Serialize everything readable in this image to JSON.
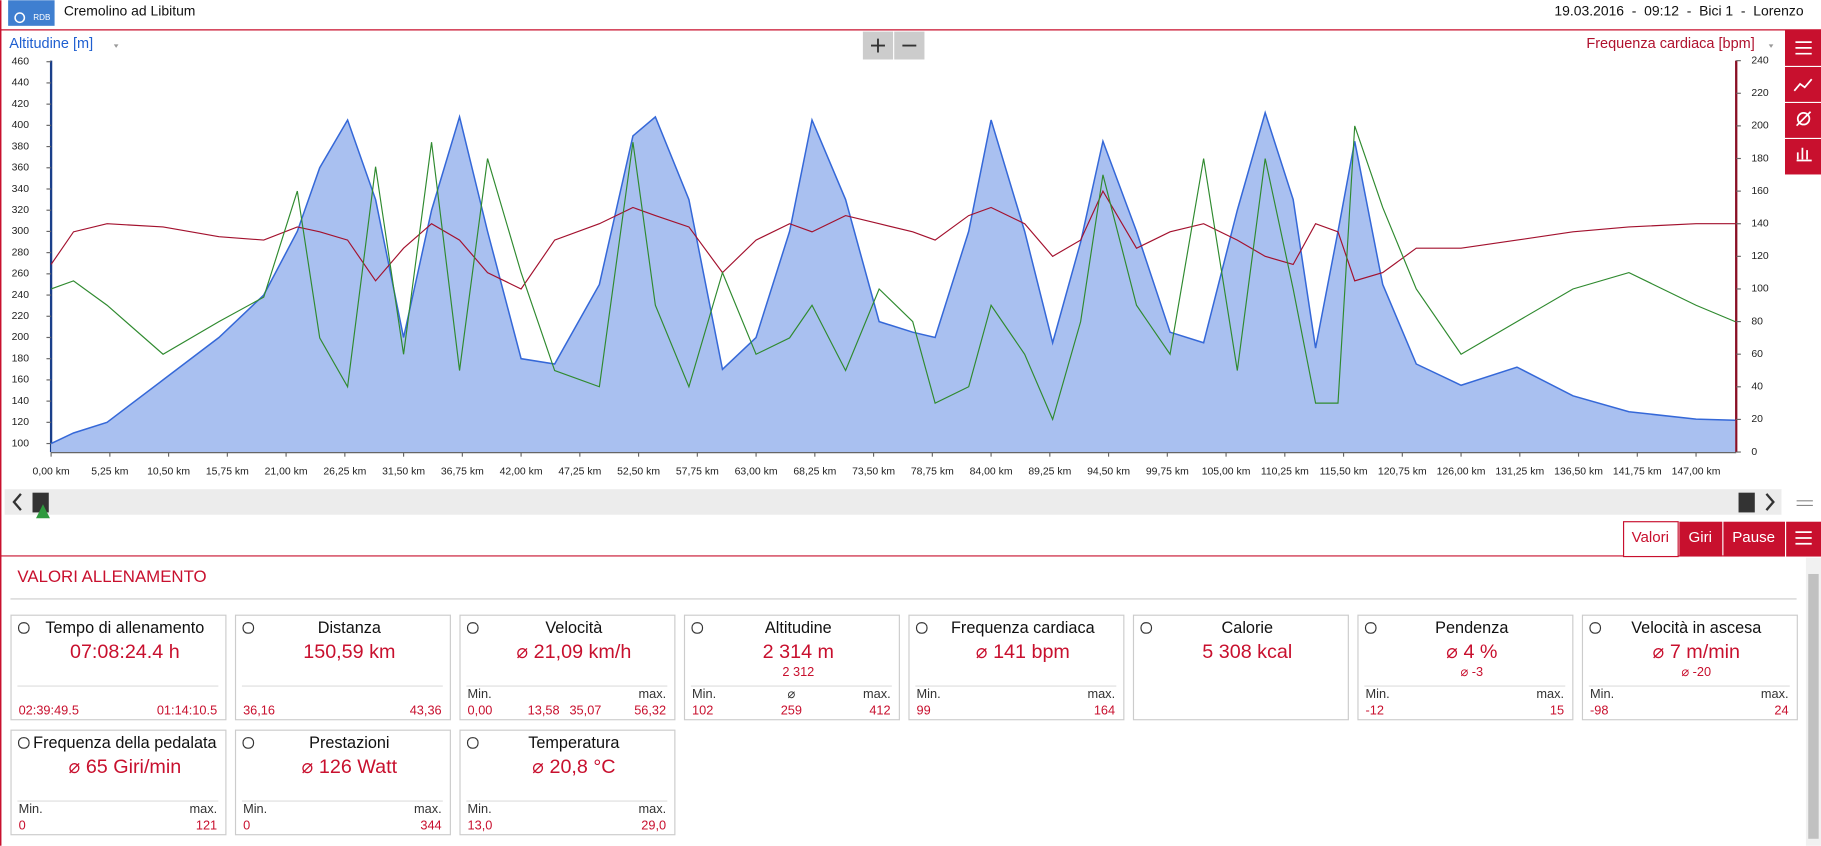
{
  "header": {
    "logo": "RDB",
    "title": "Cremolino ad Libitum",
    "info": "19.03.2016  -  09:12  -  Bici 1  -  Lorenzo"
  },
  "chart_data": {
    "type": "line",
    "x": [
      0,
      2,
      5,
      10,
      15,
      19,
      22,
      24,
      26.5,
      29,
      31.5,
      34,
      36.5,
      39,
      42,
      45,
      49,
      52,
      54,
      57,
      60,
      63,
      66,
      68,
      71,
      74,
      77,
      79,
      82,
      84,
      87,
      89.5,
      92,
      94,
      97,
      100,
      103,
      106,
      108.5,
      111,
      113,
      115,
      116.5,
      119,
      122,
      126,
      131,
      136,
      141,
      147,
      150.5
    ],
    "xlim": [
      0,
      150.59
    ],
    "xticks": [
      {
        "value": 0,
        "label": "0,00 km"
      },
      {
        "value": 5.25,
        "label": "5,25 km"
      },
      {
        "value": 10.5,
        "label": "10,50 km"
      },
      {
        "value": 15.75,
        "label": "15,75 km"
      },
      {
        "value": 21,
        "label": "21,00 km"
      },
      {
        "value": 26.25,
        "label": "26,25 km"
      },
      {
        "value": 31.5,
        "label": "31,50 km"
      },
      {
        "value": 36.75,
        "label": "36,75 km"
      },
      {
        "value": 42,
        "label": "42,00 km"
      },
      {
        "value": 47.25,
        "label": "47,25 km"
      },
      {
        "value": 52.5,
        "label": "52,50 km"
      },
      {
        "value": 57.75,
        "label": "57,75 km"
      },
      {
        "value": 63,
        "label": "63,00 km"
      },
      {
        "value": 68.25,
        "label": "68,25 km"
      },
      {
        "value": 73.5,
        "label": "73,50 km"
      },
      {
        "value": 78.75,
        "label": "78,75 km"
      },
      {
        "value": 84,
        "label": "84,00 km"
      },
      {
        "value": 89.25,
        "label": "89,25 km"
      },
      {
        "value": 94.5,
        "label": "94,50 km"
      },
      {
        "value": 99.75,
        "label": "99,75 km"
      },
      {
        "value": 105,
        "label": "105,00 km"
      },
      {
        "value": 110.25,
        "label": "110,25 km"
      },
      {
        "value": 115.5,
        "label": "115,50 km"
      },
      {
        "value": 120.75,
        "label": "120,75 km"
      },
      {
        "value": 126,
        "label": "126,00 km"
      },
      {
        "value": 131.25,
        "label": "131,25 km"
      },
      {
        "value": 136.5,
        "label": "136,50 km"
      },
      {
        "value": 141.75,
        "label": "141,75 km"
      },
      {
        "value": 147,
        "label": "147,00 km"
      }
    ],
    "ylim": [
      92,
      461
    ],
    "yticks": [
      100,
      120,
      140,
      160,
      180,
      200,
      220,
      240,
      260,
      280,
      300,
      320,
      340,
      360,
      380,
      400,
      420,
      440,
      460
    ],
    "y2lim": [
      0,
      240
    ],
    "y2ticks": [
      0,
      20,
      40,
      60,
      80,
      100,
      120,
      140,
      160,
      180,
      200,
      220,
      240
    ],
    "series": [
      {
        "name": "Altitudine [m]",
        "color": "#3568d8",
        "fill": "#a9c0f0",
        "area": true,
        "values": [
          100,
          110,
          120,
          160,
          200,
          240,
          300,
          360,
          405,
          330,
          200,
          320,
          408,
          300,
          180,
          175,
          250,
          390,
          408,
          330,
          170,
          200,
          300,
          405,
          330,
          215,
          205,
          200,
          300,
          405,
          300,
          195,
          290,
          385,
          300,
          205,
          195,
          320,
          412,
          330,
          190,
          300,
          385,
          250,
          175,
          155,
          172,
          145,
          130,
          123,
          122
        ]
      },
      {
        "name": "Frequenza cardiaca [bpm]",
        "color": "#a3112e",
        "axis": "y2",
        "values": [
          115,
          135,
          140,
          138,
          132,
          130,
          138,
          135,
          130,
          105,
          125,
          140,
          130,
          110,
          100,
          130,
          140,
          150,
          145,
          138,
          110,
          130,
          140,
          135,
          145,
          140,
          135,
          130,
          145,
          150,
          140,
          120,
          130,
          160,
          125,
          135,
          140,
          130,
          120,
          115,
          140,
          135,
          105,
          110,
          125,
          125,
          130,
          135,
          138,
          140,
          140
        ]
      },
      {
        "color": "#2f8a2f",
        "axis": "y2",
        "values": [
          100,
          105,
          90,
          60,
          80,
          95,
          160,
          70,
          40,
          175,
          60,
          190,
          50,
          180,
          110,
          50,
          40,
          190,
          90,
          40,
          110,
          60,
          70,
          90,
          50,
          100,
          80,
          30,
          40,
          90,
          60,
          20,
          80,
          170,
          90,
          60,
          180,
          50,
          180,
          100,
          30,
          30,
          200,
          150,
          100,
          60,
          80,
          100,
          110,
          90,
          80
        ]
      }
    ]
  },
  "tabs": [
    "Valori",
    "Giri",
    "Pause"
  ],
  "section": "VALORI ALLENAMENTO",
  "cards": [
    {
      "title": "Tempo di allenamento",
      "value": "07:08:24.4 h",
      "foot": [
        {
          "value": "02:39:49.5"
        },
        {
          "value": "01:14:10.5"
        }
      ]
    },
    {
      "title": "Distanza",
      "value": "150,59 km",
      "foot": [
        {
          "value": "36,16"
        },
        {
          "value": "43,36"
        }
      ]
    },
    {
      "title": "Velocità",
      "value": "⌀ 21,09 km/h",
      "foot": [
        {
          "label": "Min.",
          "value": "0,00"
        },
        {
          "value": "13,58"
        },
        {
          "value": "35,07"
        },
        {
          "label": "max.",
          "value": "56,32"
        }
      ]
    },
    {
      "title": "Altitudine",
      "value": "2 314 m",
      "value2": "2 312",
      "foot": [
        {
          "label": "Min.",
          "value": "102"
        },
        {
          "label": "⌀",
          "value": "259"
        },
        {
          "label": "max.",
          "value": "412"
        }
      ]
    },
    {
      "title": "Frequenza cardiaca",
      "value": "⌀ 141 bpm",
      "foot": [
        {
          "label": "Min.",
          "value": "99"
        },
        {
          "label": "max.",
          "value": "164"
        }
      ]
    },
    {
      "title": "Calorie",
      "value": "5 308 kcal"
    },
    {
      "title": "Pendenza",
      "value": "⌀ 4 %",
      "value2": "⌀ -3",
      "foot": [
        {
          "label": "Min.",
          "value": "-12"
        },
        {
          "label": "max.",
          "value": "15"
        }
      ]
    },
    {
      "title": "Velocità in ascesa",
      "value": "⌀ 7 m/min",
      "value2": "⌀ -20",
      "foot": [
        {
          "label": "Min.",
          "value": "-98"
        },
        {
          "label": "max.",
          "value": "24"
        }
      ]
    },
    {
      "title": "Frequenza della pedalata",
      "value": "⌀ 65 Giri/min",
      "foot": [
        {
          "label": "Min.",
          "value": "0"
        },
        {
          "label": "max.",
          "value": "121"
        }
      ]
    },
    {
      "title": "Prestazioni",
      "value": "⌀ 126 Watt",
      "foot": [
        {
          "label": "Min.",
          "value": "0"
        },
        {
          "label": "max.",
          "value": "344"
        }
      ]
    },
    {
      "title": "Temperatura",
      "value": "⌀ 20,8 °C",
      "foot": [
        {
          "label": "Min.",
          "value": "13,0"
        },
        {
          "label": "max.",
          "value": "29,0"
        }
      ]
    }
  ]
}
